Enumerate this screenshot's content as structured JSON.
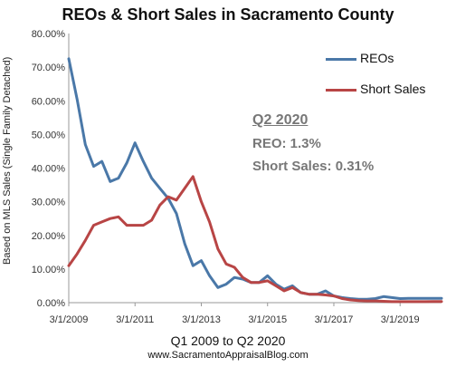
{
  "chart_data": {
    "type": "line",
    "title": "REOs & Short Sales in Sacramento County",
    "xlabel": "Q1 2009 to Q2 2020",
    "ylabel": "Based on MLS Sales (Single Family Detached)",
    "source": "www.SacramentoAppraisalBlog.com",
    "ylim": [
      0,
      80
    ],
    "y_ticks": [
      "0.00%",
      "10.00%",
      "20.00%",
      "30.00%",
      "40.00%",
      "50.00%",
      "60.00%",
      "70.00%",
      "80.00%"
    ],
    "x_tick_labels": [
      "3/1/2009",
      "3/1/2011",
      "3/1/2013",
      "3/1/2015",
      "3/1/2017",
      "3/1/2019"
    ],
    "x_tick_quarters": [
      0,
      8,
      16,
      24,
      32,
      40
    ],
    "grid": false,
    "legend_position": "top-right",
    "series": [
      {
        "name": "REOs",
        "color": "#4a78a8",
        "values": [
          72.5,
          60.5,
          47,
          40.5,
          42,
          36,
          37,
          41.5,
          47.5,
          42,
          37,
          34,
          31,
          26.5,
          17.5,
          11,
          12.5,
          8,
          4.5,
          5.5,
          7.5,
          7,
          6,
          6,
          8,
          5.5,
          4,
          5,
          3,
          2.5,
          2.5,
          3.5,
          2,
          1.5,
          1.2,
          1.0,
          1.0,
          1.2,
          1.8,
          1.5,
          1.2,
          1.3,
          1.3,
          1.3,
          1.3,
          1.3
        ]
      },
      {
        "name": "Short Sales",
        "color": "#b84545",
        "values": [
          11,
          14.5,
          18.5,
          23,
          24,
          25,
          25.5,
          23,
          23,
          23,
          24.5,
          29,
          31.5,
          30.5,
          34,
          37.5,
          30,
          24,
          16,
          11.5,
          10.5,
          7.5,
          6,
          6,
          6.5,
          5,
          3.5,
          4.5,
          3,
          2.5,
          2.5,
          2.3,
          2,
          1.2,
          0.8,
          0.6,
          0.5,
          0.5,
          0.4,
          0.3,
          0.3,
          0.3,
          0.3,
          0.3,
          0.31,
          0.31
        ]
      }
    ],
    "annotation": {
      "title": "Q2 2020",
      "lines": [
        "REO: 1.3%",
        "Short Sales: 0.31%"
      ],
      "color": "#777777"
    }
  }
}
